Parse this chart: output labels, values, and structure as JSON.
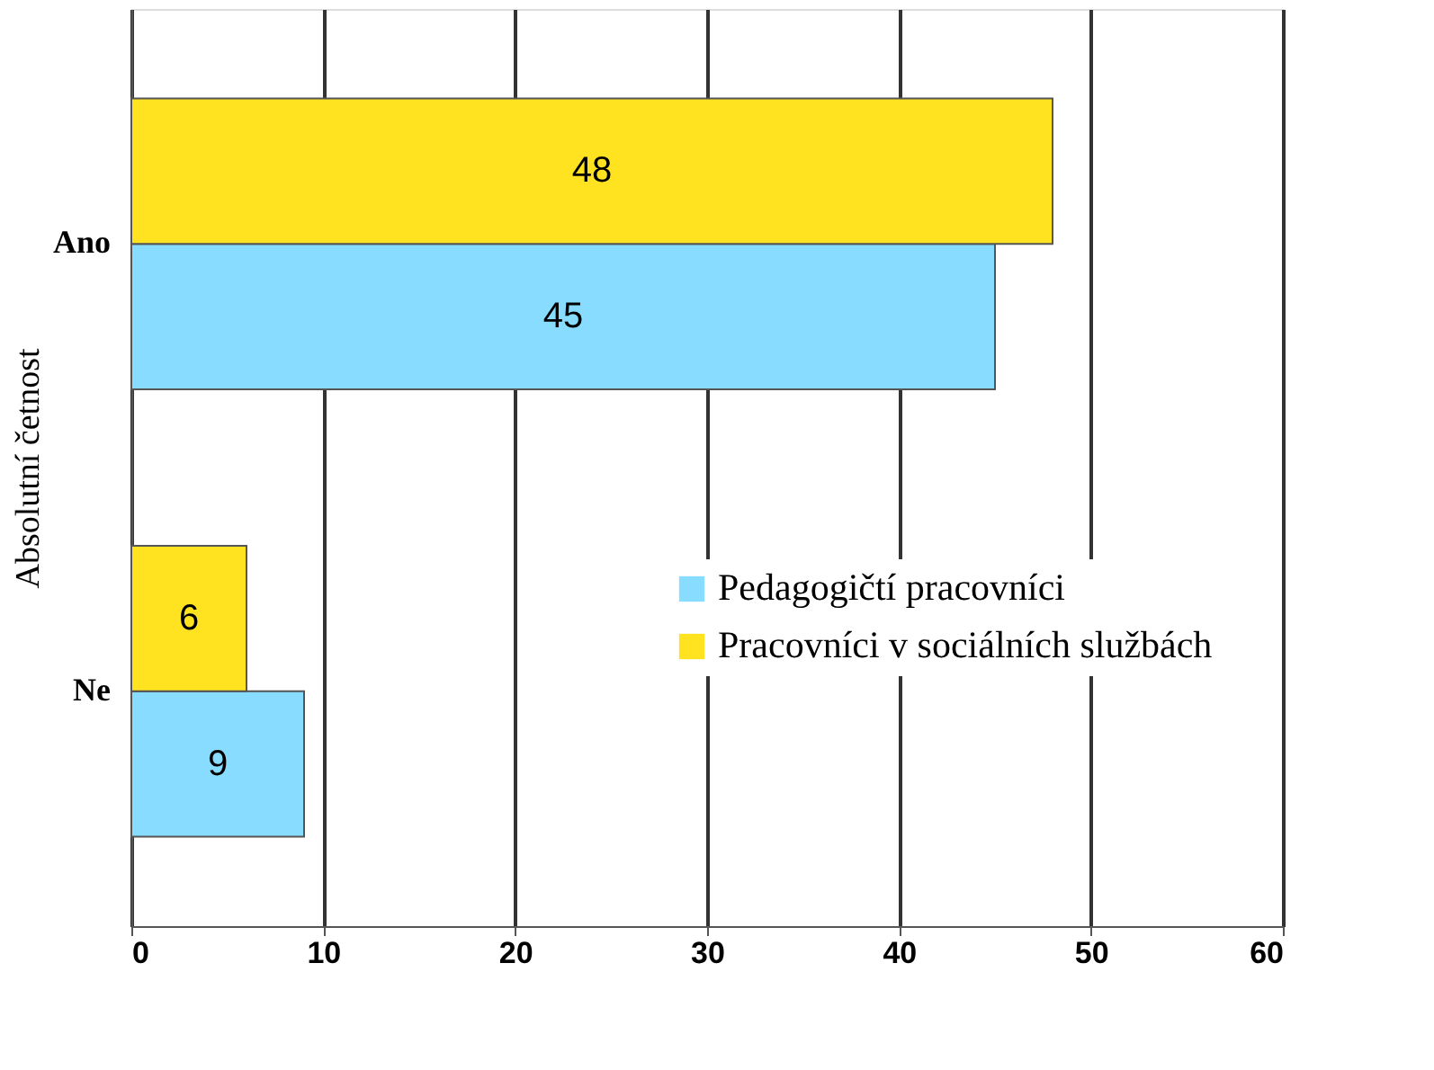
{
  "chart_data": {
    "type": "bar",
    "orientation": "horizontal",
    "ylabel": "Absolutní četnost",
    "categories": [
      "Ano",
      "Ne"
    ],
    "series": [
      {
        "name": "Pedagogičtí pracovníci",
        "color": "#87dcff",
        "values": [
          45,
          9
        ]
      },
      {
        "name": "Pracovníci v sociálních službách",
        "color": "#ffe320",
        "values": [
          48,
          6
        ]
      }
    ],
    "xlim": [
      0,
      60
    ],
    "xticks": [
      0,
      10,
      20,
      30,
      40,
      50,
      60
    ],
    "grid": "x",
    "legend": "right",
    "data_labels": true
  }
}
